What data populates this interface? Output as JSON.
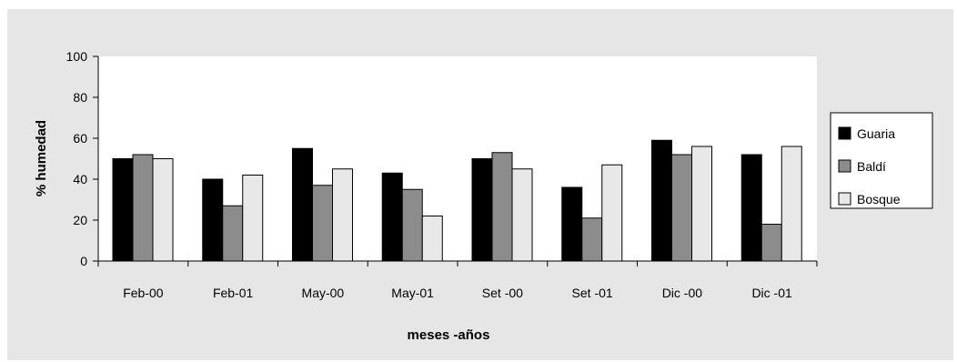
{
  "chart_data": {
    "type": "bar",
    "categories": [
      "Feb-00",
      "Feb-01",
      "May-00",
      "May-01",
      "Set -00",
      "Set -01",
      "Dic -00",
      "Dic -01"
    ],
    "series": [
      {
        "name": "Guaria",
        "color": "#000000",
        "values": [
          50,
          40,
          55,
          43,
          50,
          36,
          59,
          52
        ]
      },
      {
        "name": "Baldí",
        "color": "#8c8c8c",
        "values": [
          52,
          27,
          37,
          35,
          53,
          21,
          52,
          18
        ]
      },
      {
        "name": "Bosque",
        "color": "#e8e8e8",
        "values": [
          50,
          42,
          45,
          22,
          45,
          47,
          56,
          56
        ]
      }
    ],
    "xlabel": "meses -años",
    "ylabel": "% humedad",
    "ylim": [
      0,
      100
    ],
    "yticks": [
      0,
      20,
      40,
      60,
      80,
      100
    ],
    "grid": false,
    "legend_position": "right"
  }
}
